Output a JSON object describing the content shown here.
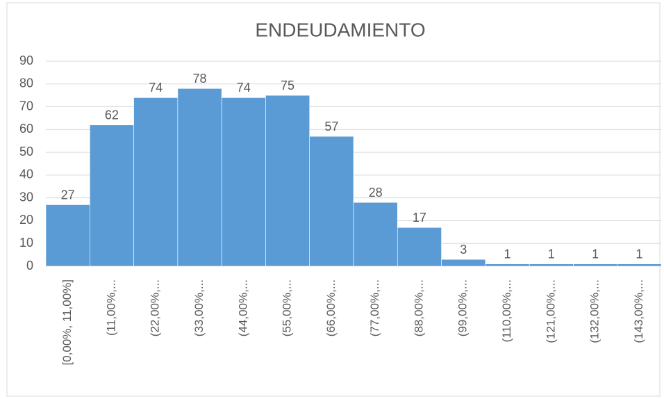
{
  "chart_data": {
    "type": "bar",
    "title": "ENDEUDAMIENTO",
    "categories": [
      "[0,00%, 11,00%]",
      "(11,00%,...",
      "(22,00%,...",
      "(33,00%,...",
      "(44,00%,...",
      "(55,00%,...",
      "(66,00%,...",
      "(77,00%,...",
      "(88,00%,...",
      "(99,00%,...",
      "(110,00%,...",
      "(121,00%,...",
      "(132,00%,...",
      "(143,00%,..."
    ],
    "values": [
      27,
      62,
      74,
      78,
      74,
      75,
      57,
      28,
      17,
      3,
      1,
      1,
      1,
      1
    ],
    "color": "#5b9bd5",
    "ylim": [
      0,
      90
    ],
    "yticks": [
      0,
      10,
      20,
      30,
      40,
      50,
      60,
      70,
      80,
      90
    ],
    "grid": true
  }
}
